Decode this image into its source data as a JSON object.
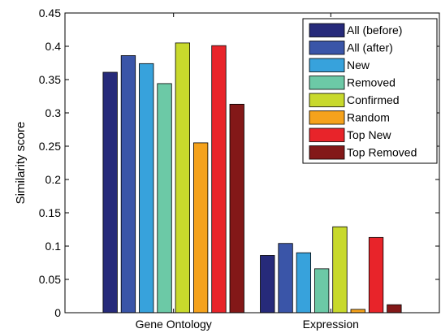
{
  "chart_data": {
    "type": "bar",
    "title": "",
    "xlabel": "",
    "ylabel": "Similarity score",
    "ylim": [
      0,
      0.45
    ],
    "yticks": [
      "0",
      "0.05",
      "0.1",
      "0.15",
      "0.2",
      "0.25",
      "0.3",
      "0.35",
      "0.4",
      "0.45"
    ],
    "categories": [
      "Gene Ontology",
      "Expression"
    ],
    "legend_position": "top-right",
    "grid": false,
    "series": [
      {
        "name": "All (before)",
        "color": "#262a7a",
        "values": [
          0.361,
          0.086
        ]
      },
      {
        "name": "All (after)",
        "color": "#3a55a8",
        "values": [
          0.386,
          0.104
        ]
      },
      {
        "name": "New",
        "color": "#37a2dc",
        "values": [
          0.374,
          0.09
        ]
      },
      {
        "name": "Removed",
        "color": "#6cc9a6",
        "values": [
          0.344,
          0.066
        ]
      },
      {
        "name": "Confirmed",
        "color": "#c8d92c",
        "values": [
          0.405,
          0.129
        ]
      },
      {
        "name": "Random",
        "color": "#f5a21c",
        "values": [
          0.255,
          0.005
        ]
      },
      {
        "name": "Top New",
        "color": "#e8242a",
        "values": [
          0.401,
          0.113
        ]
      },
      {
        "name": "Top Removed",
        "color": "#831818",
        "values": [
          0.313,
          0.012
        ]
      }
    ]
  }
}
